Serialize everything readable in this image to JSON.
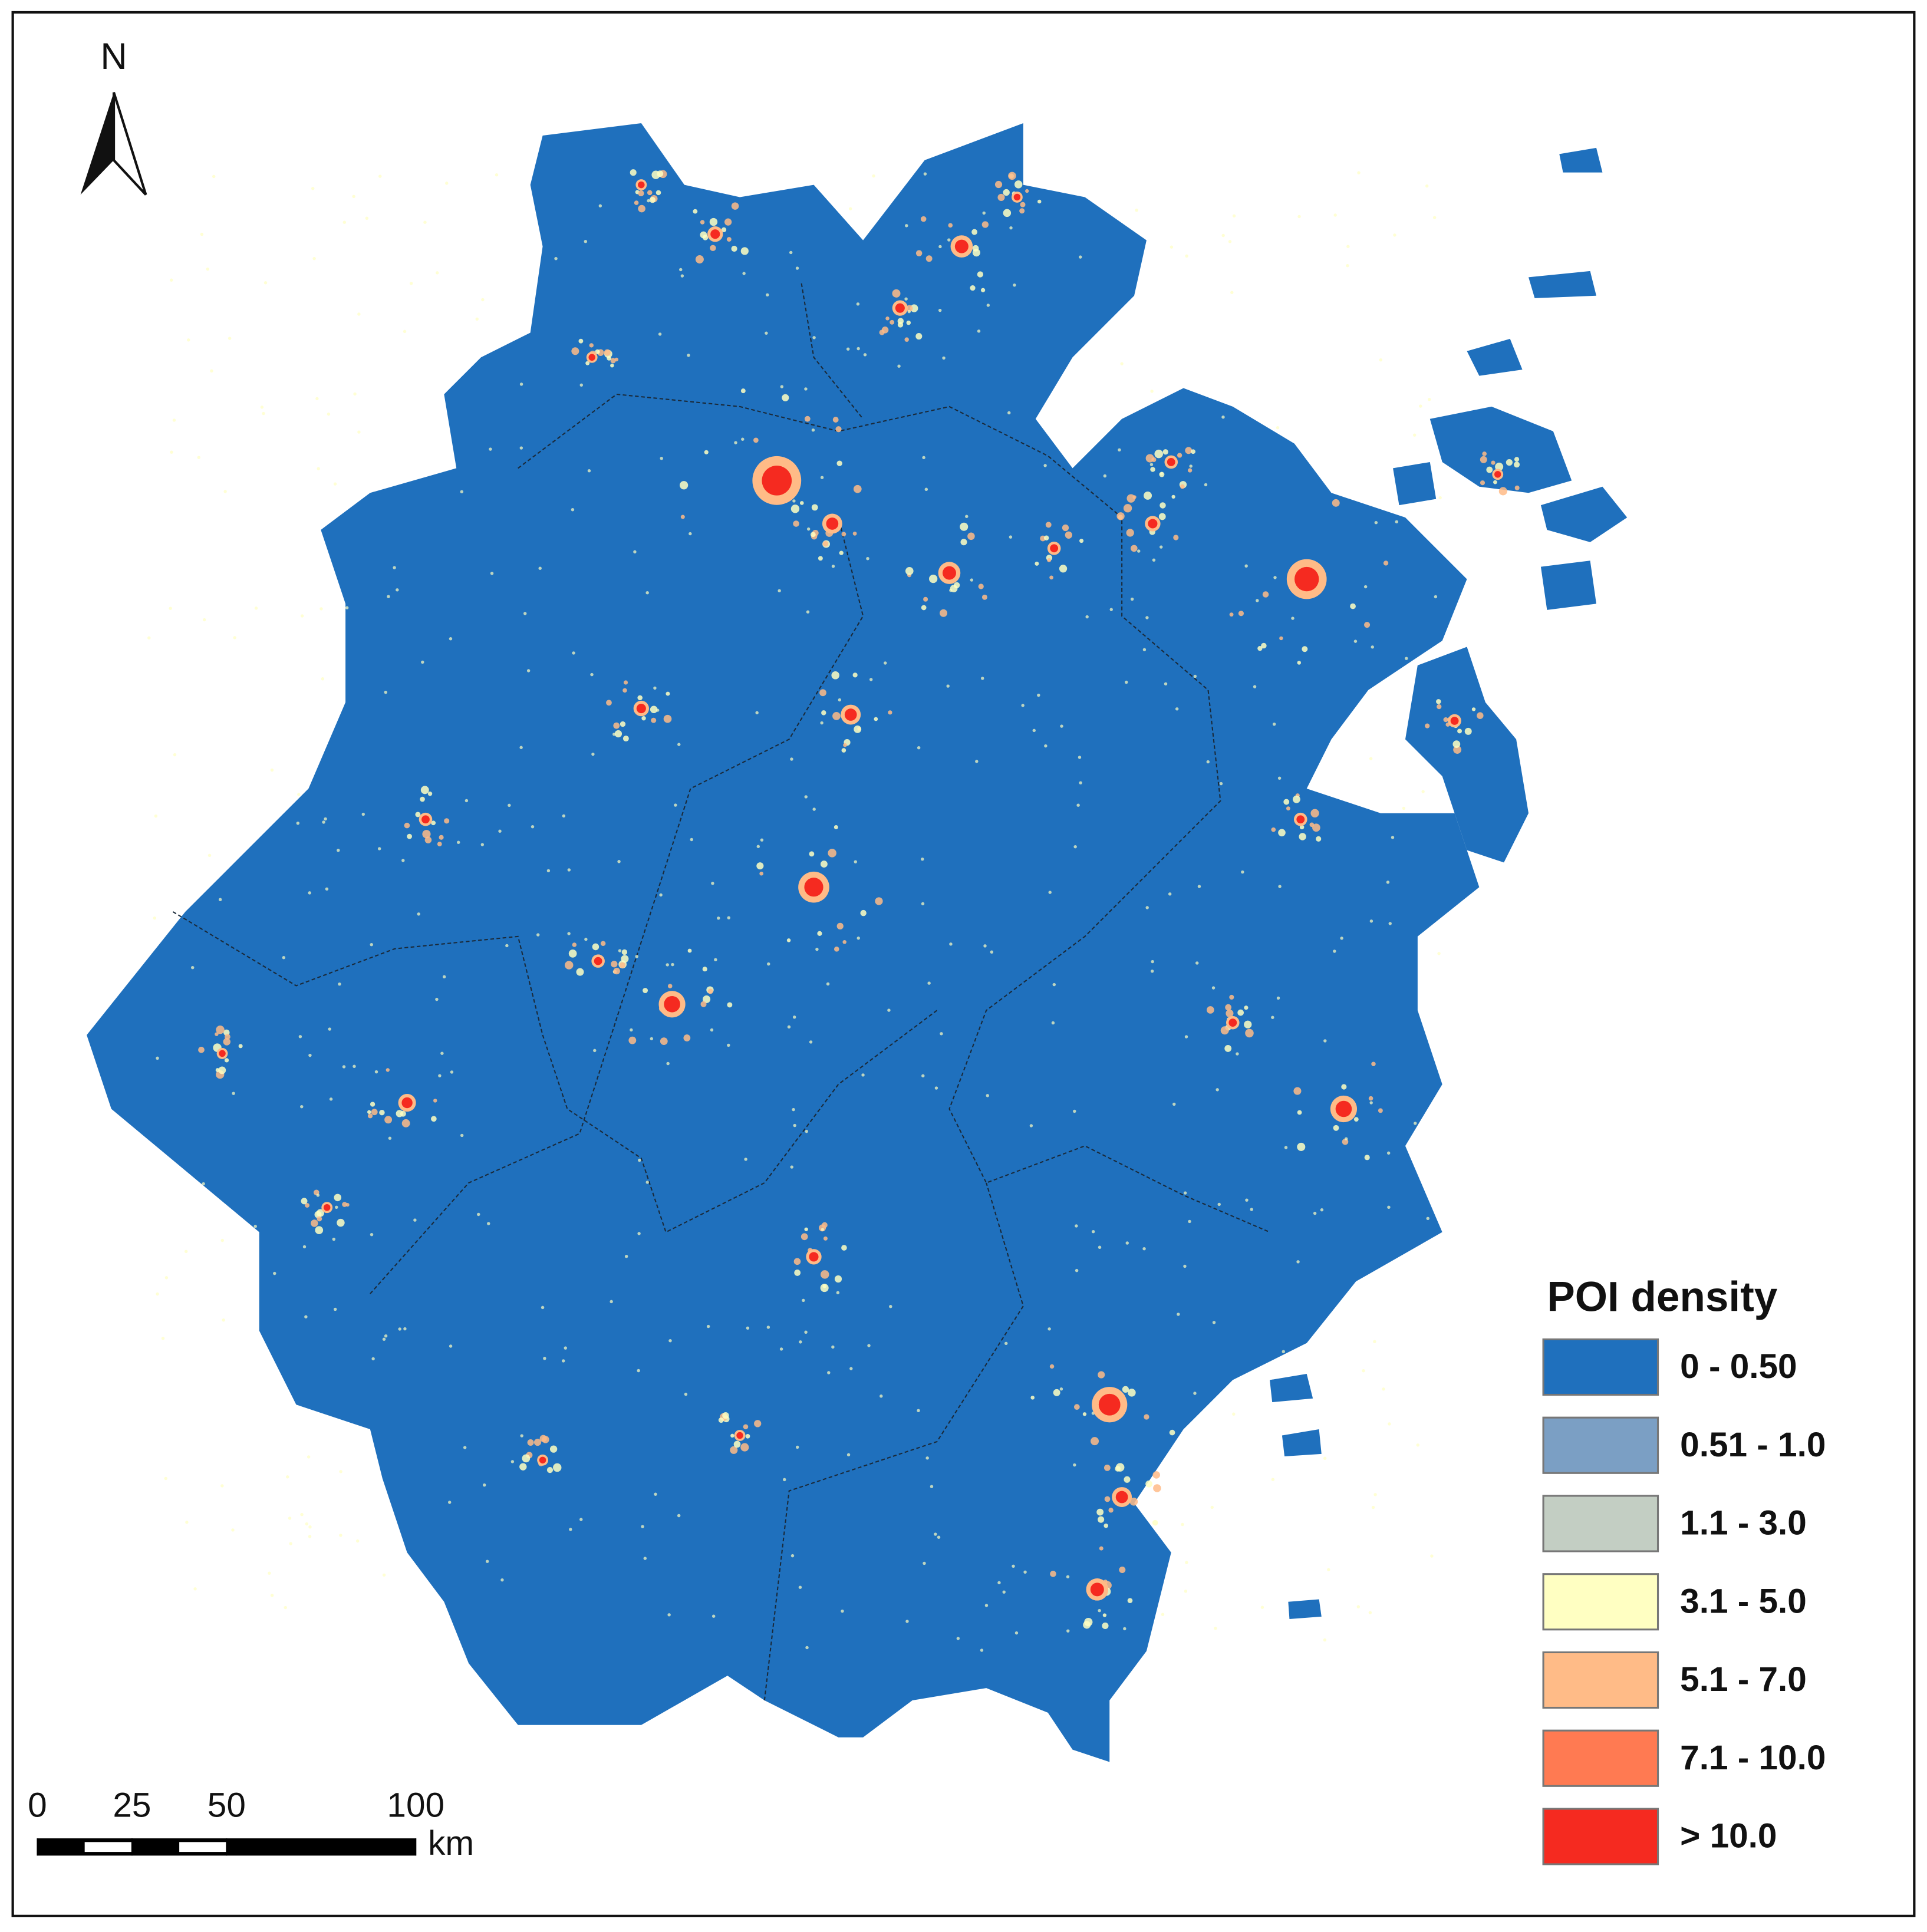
{
  "north_label": "N",
  "legend": {
    "title": "POI density",
    "items": [
      {
        "label": "0 - 0.50",
        "color": "#1f70bd"
      },
      {
        "label": "0.51 - 1.0",
        "color": "#7b9fc4"
      },
      {
        "label": "1.1 - 3.0",
        "color": "#c3cec3"
      },
      {
        "label": "3.1 - 5.0",
        "color": "#ffffc2"
      },
      {
        "label": "5.1 - 7.0",
        "color": "#ffbb87"
      },
      {
        "label": "7.1 - 10.0",
        "color": "#ff7a52"
      },
      {
        "label": "> 10.0",
        "color": "#f52a20"
      }
    ]
  },
  "scale_bar": {
    "ticks": [
      0,
      25,
      50,
      100
    ],
    "unit": "km"
  }
}
